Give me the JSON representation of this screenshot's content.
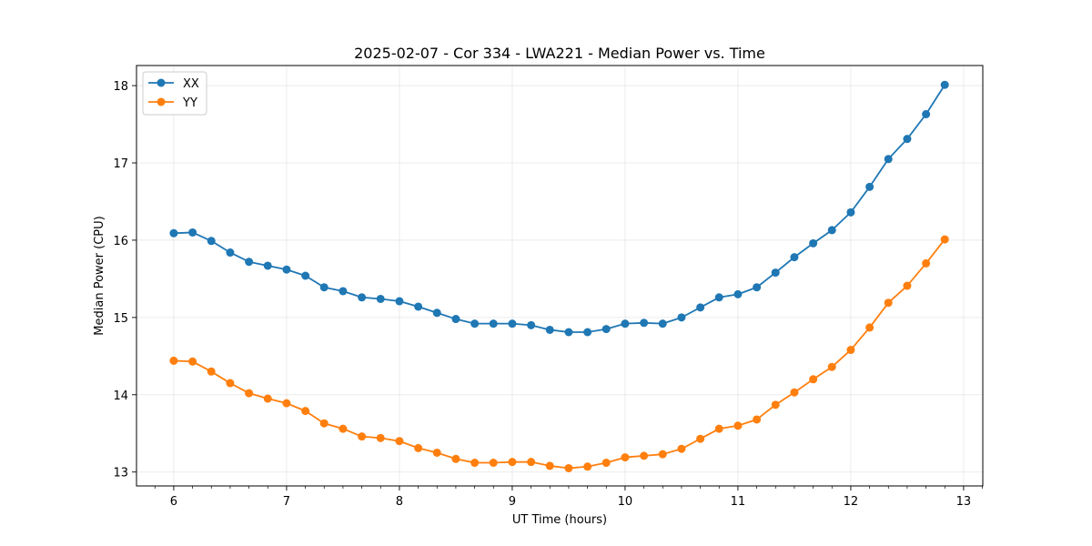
{
  "chart_data": {
    "type": "line",
    "title": "2025-02-07 - Cor 334 - LWA221 - Median Power vs. Time",
    "xlabel": "UT Time (hours)",
    "ylabel": "Median Power (CPU)",
    "xlim": [
      5.67,
      13.17
    ],
    "ylim": [
      12.82,
      18.26
    ],
    "xticks": [
      6,
      7,
      8,
      9,
      10,
      11,
      12,
      13
    ],
    "yticks": [
      13,
      14,
      15,
      16,
      17,
      18
    ],
    "grid": true,
    "legend_position": "top-left",
    "x": [
      6.0,
      6.167,
      6.333,
      6.5,
      6.667,
      6.833,
      7.0,
      7.167,
      7.333,
      7.5,
      7.667,
      7.833,
      8.0,
      8.167,
      8.333,
      8.5,
      8.667,
      8.833,
      9.0,
      9.167,
      9.333,
      9.5,
      9.667,
      9.833,
      10.0,
      10.167,
      10.333,
      10.5,
      10.667,
      10.833,
      11.0,
      11.167,
      11.333,
      11.5,
      11.667,
      11.833,
      12.0,
      12.167,
      12.333,
      12.5,
      12.667,
      12.833
    ],
    "series": [
      {
        "name": "XX",
        "color": "#1f77b4",
        "values": [
          16.09,
          16.1,
          15.99,
          15.84,
          15.72,
          15.67,
          15.62,
          15.54,
          15.39,
          15.34,
          15.26,
          15.24,
          15.21,
          15.14,
          15.06,
          14.98,
          14.92,
          14.92,
          14.92,
          14.9,
          14.84,
          14.81,
          14.81,
          14.85,
          14.92,
          14.93,
          14.92,
          15.0,
          15.13,
          15.26,
          15.3,
          15.39,
          15.58,
          15.78,
          15.96,
          16.13,
          16.36,
          16.69,
          17.05,
          17.31,
          17.63,
          18.01
        ]
      },
      {
        "name": "YY",
        "color": "#ff7f0e",
        "values": [
          14.44,
          14.43,
          14.3,
          14.15,
          14.02,
          13.95,
          13.89,
          13.79,
          13.63,
          13.56,
          13.46,
          13.44,
          13.4,
          13.31,
          13.25,
          13.17,
          13.12,
          13.12,
          13.13,
          13.13,
          13.08,
          13.05,
          13.07,
          13.12,
          13.19,
          13.21,
          13.23,
          13.3,
          13.43,
          13.56,
          13.6,
          13.68,
          13.87,
          14.03,
          14.2,
          14.36,
          14.58,
          14.87,
          15.19,
          15.41,
          15.7,
          16.01
        ]
      }
    ]
  }
}
